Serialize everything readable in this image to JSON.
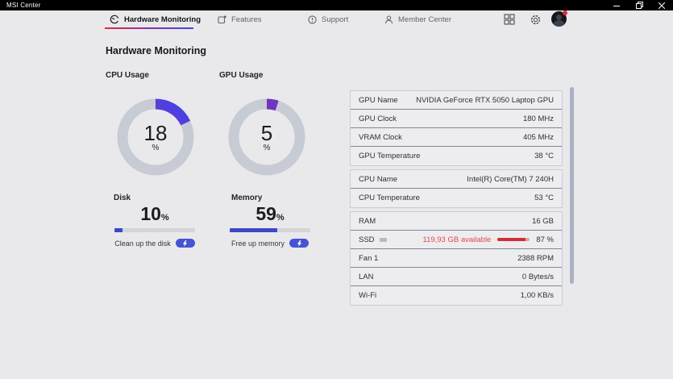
{
  "titlebar": {
    "app_name": "MSI Center"
  },
  "window_controls": {
    "minimize": "minimize",
    "restore": "restore",
    "close": "close"
  },
  "nav": {
    "items": [
      {
        "label": "Hardware Monitoring",
        "active": true
      },
      {
        "label": "Features",
        "active": false
      },
      {
        "label": "Support",
        "active": false
      },
      {
        "label": "Member Center",
        "active": false
      }
    ],
    "underline_gradient": [
      "#e8273f",
      "#3b4ae0"
    ]
  },
  "page": {
    "title": "Hardware Monitoring"
  },
  "chart_data": [
    {
      "type": "pie",
      "title": "CPU Usage",
      "values": [
        18,
        82
      ],
      "categories": [
        "used",
        "free"
      ],
      "center_label": "18",
      "unit": "%"
    },
    {
      "type": "pie",
      "title": "GPU Usage",
      "values": [
        5,
        95
      ],
      "categories": [
        "used",
        "free"
      ],
      "center_label": "5",
      "unit": "%"
    }
  ],
  "gauges": [
    {
      "title": "CPU Usage",
      "value": 18,
      "display": "18",
      "unit": "%"
    },
    {
      "title": "GPU Usage",
      "value": 5,
      "display": "5",
      "unit": "%"
    }
  ],
  "meters": [
    {
      "title": "Disk",
      "value": 10,
      "display": "10",
      "unit": "%",
      "action": "Clean up the disk"
    },
    {
      "title": "Memory",
      "value": 59,
      "display": "59",
      "unit": "%",
      "action": "Free up memory"
    }
  ],
  "monitor": {
    "groups": [
      {
        "rows": [
          {
            "label": "GPU Name",
            "value": "NVIDIA GeForce RTX 5050 Laptop GPU"
          },
          {
            "label": "GPU Clock",
            "value": "180 MHz"
          },
          {
            "label": "VRAM Clock",
            "value": "405 MHz"
          },
          {
            "label": "GPU Temperature",
            "value": "38 °C"
          }
        ]
      },
      {
        "rows": [
          {
            "label": "CPU Name",
            "value": "Intel(R) Core(TM) 7 240H"
          },
          {
            "label": "CPU Temperature",
            "value": "53 °C"
          }
        ]
      },
      {
        "rows": [
          {
            "label": "RAM",
            "value": "16 GB"
          },
          {
            "label": "SSD",
            "value": "87 %",
            "available": "119,93 GB available",
            "used_percent": 87
          },
          {
            "label": "Fan 1",
            "value": "2388 RPM"
          },
          {
            "label": "LAN",
            "value": "0 Bytes/s"
          },
          {
            "label": "Wi-Fi",
            "value": "1,00 KB/s"
          }
        ]
      }
    ]
  },
  "colors": {
    "accent_blue": "#3c49c6",
    "gauge_gradient_start": "#8e2da5",
    "gauge_gradient_end": "#4343ea",
    "gauge_track": "#c7cbd4",
    "alert_red": "#e34850",
    "titlebar_bg": "#000000",
    "app_bg": "#e9e9eb"
  }
}
